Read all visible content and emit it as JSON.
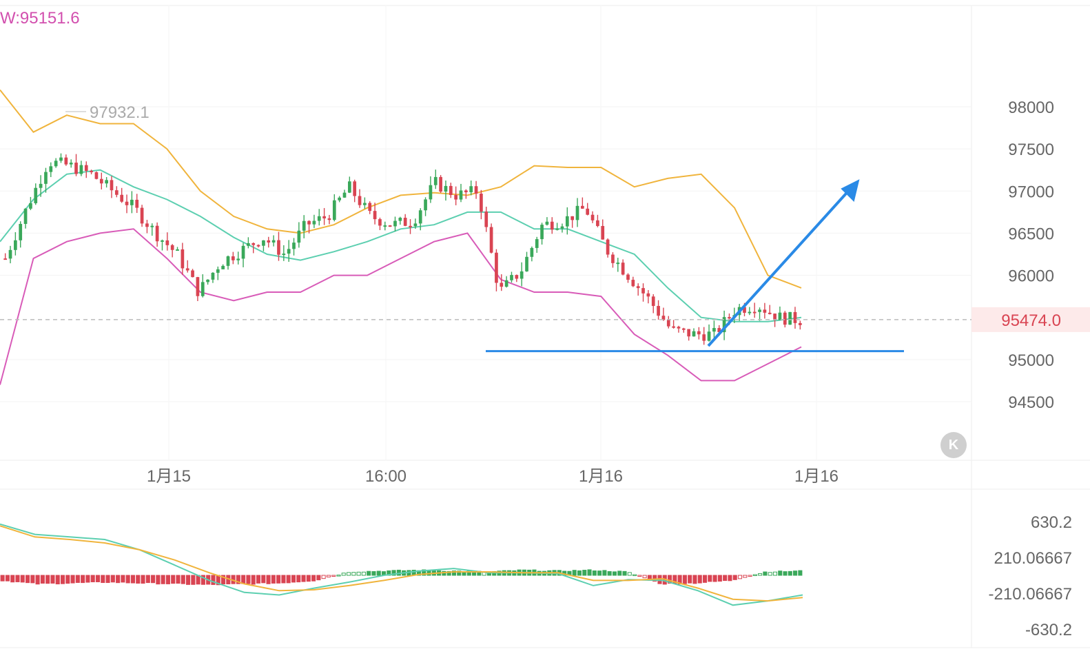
{
  "indicator_label": "W:95151.6",
  "high_marker": "97932.1",
  "current_price": "95474.0",
  "y_ticks": [
    "98000",
    "97500",
    "97000",
    "96500",
    "96000",
    "95000",
    "94500"
  ],
  "x_ticks": [
    "1月15",
    "16:00",
    "1月16",
    "1月16"
  ],
  "macd_ticks": [
    "630.2",
    "210.06667",
    "-210.06667",
    "-630.2"
  ],
  "collapse_icon": "K",
  "colors": {
    "up": "#3aa85a",
    "down": "#d94452",
    "upper_band": "#f0b43c",
    "middle_band": "#5ccfb0",
    "lower_band": "#d85bb8",
    "annotation": "#2a8ae6",
    "price_tag_bg": "#fdeaea",
    "price_tag_text": "#d94452"
  },
  "chart_data": {
    "type": "candlestick",
    "ylim": [
      94000,
      98800
    ],
    "current_price": 95474.0,
    "high_marker": 97932.1,
    "support_level": 95100,
    "close_series": [
      96200,
      96800,
      97350,
      97300,
      97200,
      97000,
      96800,
      96500,
      96250,
      95800,
      96150,
      96300,
      96450,
      96250,
      96600,
      96700,
      97050,
      96700,
      96600,
      96650,
      97100,
      96950,
      97000,
      95800,
      96050,
      96600,
      96650,
      96800,
      96300,
      96000,
      95700,
      95350,
      95300,
      95300,
      95600,
      95650,
      95500,
      95470
    ],
    "bands": {
      "upper": [
        98200,
        97700,
        97900,
        97800,
        97800,
        97500,
        97000,
        96700,
        96550,
        96500,
        96600,
        96800,
        96950,
        96980,
        96950,
        97050,
        97300,
        97280,
        97280,
        97050,
        97150,
        97200,
        96800,
        96000,
        95850
      ],
      "middle": [
        96400,
        96900,
        97200,
        97250,
        97050,
        96900,
        96700,
        96450,
        96250,
        96180,
        96280,
        96400,
        96550,
        96600,
        96750,
        96750,
        96550,
        96550,
        96400,
        96250,
        95850,
        95500,
        95450,
        95450,
        95500
      ],
      "lower": [
        94700,
        96200,
        96400,
        96500,
        96550,
        96200,
        95800,
        95700,
        95800,
        95800,
        96000,
        96000,
        96200,
        96400,
        96500,
        95950,
        95800,
        95800,
        95750,
        95300,
        95050,
        94750,
        94750,
        94950,
        95150
      ]
    },
    "macd": {
      "ylim": [
        -700,
        700
      ],
      "dif": [
        600,
        480,
        450,
        420,
        300,
        120,
        -60,
        -200,
        -230,
        -150,
        -80,
        0,
        50,
        80,
        30,
        30,
        20,
        -120,
        -50,
        -60,
        -180,
        -350,
        -300,
        -230
      ],
      "dea": [
        580,
        450,
        420,
        380,
        300,
        180,
        30,
        -100,
        -180,
        -170,
        -120,
        -60,
        10,
        40,
        40,
        30,
        30,
        -60,
        -60,
        -40,
        -150,
        -280,
        -300,
        -260
      ],
      "hist": [
        -60,
        -100,
        -90,
        -80,
        -90,
        -100,
        -110,
        -100,
        -90,
        -60,
        40,
        50,
        60,
        50,
        40,
        60,
        50,
        60,
        40,
        -100,
        -90,
        -60,
        40,
        50
      ]
    }
  }
}
